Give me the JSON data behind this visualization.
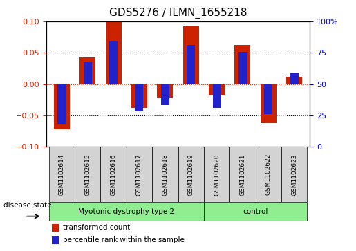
{
  "title": "GDS5276 / ILMN_1655218",
  "samples": [
    "GSM1102614",
    "GSM1102615",
    "GSM1102616",
    "GSM1102617",
    "GSM1102618",
    "GSM1102619",
    "GSM1102620",
    "GSM1102621",
    "GSM1102622",
    "GSM1102623"
  ],
  "red_values": [
    -0.072,
    0.043,
    0.1,
    -0.038,
    -0.022,
    0.092,
    -0.018,
    0.062,
    -0.062,
    0.012
  ],
  "blue_values": [
    -0.063,
    0.035,
    0.068,
    -0.043,
    -0.033,
    0.062,
    -0.038,
    0.051,
    -0.048,
    0.018
  ],
  "ylim": [
    -0.1,
    0.1
  ],
  "yticks_left": [
    -0.1,
    -0.05,
    0.0,
    0.05,
    0.1
  ],
  "yticks_right": [
    0,
    25,
    50,
    75,
    100
  ],
  "disease_groups": [
    {
      "label": "Myotonic dystrophy type 2",
      "start": 0,
      "end": 6,
      "color": "#90EE90"
    },
    {
      "label": "control",
      "start": 6,
      "end": 10,
      "color": "#90EE90"
    }
  ],
  "red_color": "#CC2200",
  "blue_color": "#2222CC",
  "bg_color": "#FFFFFF",
  "zero_line_color": "#CC2200",
  "title_fontsize": 11,
  "tick_label_color_left": "#CC2200",
  "tick_label_color_right": "#0000CC",
  "sample_box_color": "#D3D3D3"
}
